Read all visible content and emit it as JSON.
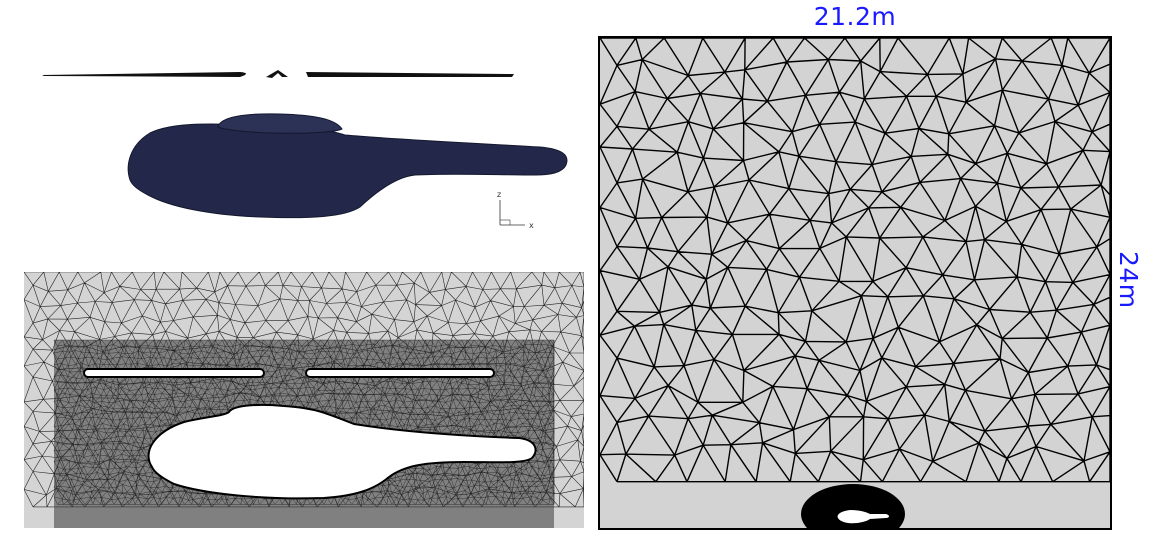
{
  "labels": {
    "domain_width": "21.2m",
    "domain_height": "24m"
  },
  "axes_triad": {
    "vertical": "z",
    "horizontal": "x"
  },
  "colors": {
    "fuselage": "#23284a",
    "mesh_background": "#d3d3d3",
    "mesh_lines": "#000000",
    "dimension_text": "#1a1aff"
  }
}
